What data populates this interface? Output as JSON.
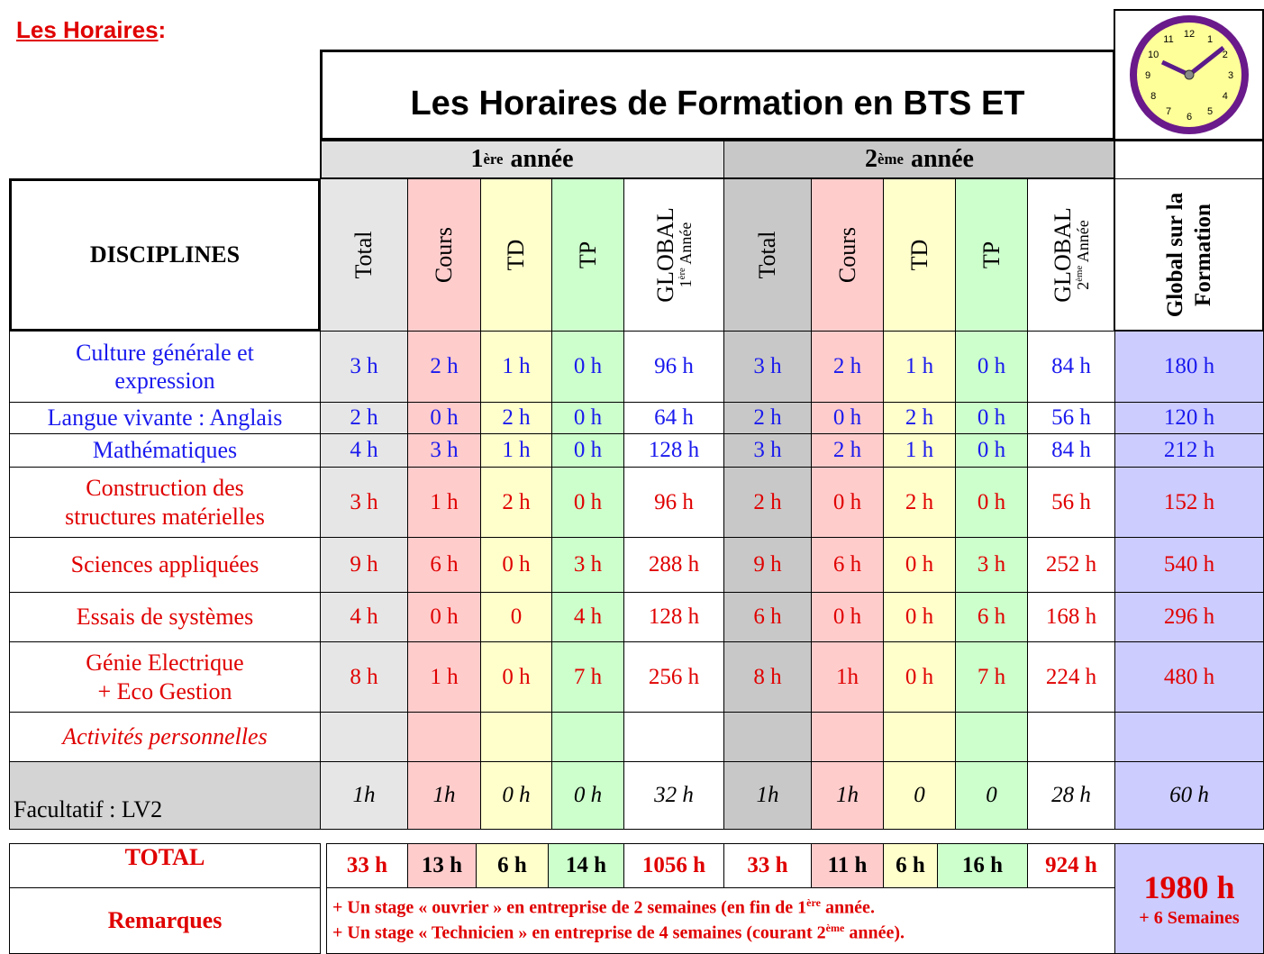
{
  "header": {
    "title": "Les Horaires",
    "title_suffix": ":"
  },
  "table": {
    "title": "Les Horaires de Formation en BTS ET",
    "years": [
      {
        "ordinal": "1",
        "sup": "ère",
        "label": "année"
      },
      {
        "ordinal": "2",
        "sup": "ème",
        "label": "année"
      }
    ],
    "discipline_header": "DISCIPLINES",
    "columns": [
      {
        "label": "Total"
      },
      {
        "label": "Cours"
      },
      {
        "label": "TD"
      },
      {
        "label": "TP"
      },
      {
        "label": "GLOBAL",
        "sub": {
          "before": "1",
          "sup": "ère",
          "after": " Année"
        }
      },
      {
        "label": "Total"
      },
      {
        "label": "Cours"
      },
      {
        "label": "TD"
      },
      {
        "label": "TP"
      },
      {
        "label": "GLOBAL",
        "sub": {
          "before": "2",
          "sup": "ème",
          "after": " Année"
        }
      },
      {
        "label": "Global sur la Formation"
      }
    ],
    "rows": [
      {
        "name": [
          "Culture générale et",
          "expression"
        ],
        "color": "#1a1aee",
        "values": [
          "3 h",
          "2 h",
          "1 h",
          "0 h",
          "96 h",
          "3 h",
          "2 h",
          "1 h",
          "0 h",
          "84 h",
          "180 h"
        ]
      },
      {
        "name": [
          "Langue vivante : Anglais"
        ],
        "color": "#1a1aee",
        "values": [
          "2 h",
          "0 h",
          "2 h",
          "0 h",
          "64 h",
          "2 h",
          "0 h",
          "2 h",
          "0 h",
          "56 h",
          "120 h"
        ]
      },
      {
        "name": [
          "Mathématiques"
        ],
        "color": "#1a1aee",
        "values": [
          "4 h",
          "3 h",
          "1 h",
          "0 h",
          "128 h",
          "3 h",
          "2 h",
          "1 h",
          "0 h",
          "84 h",
          "212 h"
        ]
      },
      {
        "name": [
          "Construction des",
          "structures matérielles"
        ],
        "color": "#e00000",
        "values": [
          "3 h",
          "1 h",
          "2 h",
          "0 h",
          "96 h",
          "2 h",
          "0 h",
          "2 h",
          "0 h",
          "56 h",
          "152 h"
        ]
      },
      {
        "name": [
          "Sciences appliquées"
        ],
        "color": "#e00000",
        "values": [
          "9 h",
          "6 h",
          "0 h",
          "3 h",
          "288 h",
          "9 h",
          "6 h",
          "0 h",
          "3 h",
          "252 h",
          "540 h"
        ]
      },
      {
        "name": [
          "Essais de systèmes"
        ],
        "color": "#e00000",
        "values": [
          "4 h",
          "0 h",
          "0",
          "4 h",
          "128 h",
          "6 h",
          "0 h",
          "0 h",
          "6 h",
          "168 h",
          "296 h"
        ]
      },
      {
        "name": [
          "Génie Electrique",
          "+ Eco Gestion"
        ],
        "color": "#e00000",
        "values": [
          "8 h",
          "1 h",
          "0 h",
          "7 h",
          "256 h",
          "8 h",
          "1h",
          "0 h",
          "7 h",
          "224 h",
          "480 h"
        ]
      },
      {
        "name": [
          "Activités personnelles"
        ],
        "color": "#e00000",
        "italic": true
      },
      {
        "name": [
          "Facultatif : LV2"
        ],
        "color": "#000000",
        "label_bg": "#d4d4d4",
        "values_italic": true,
        "values": [
          "1h",
          "1h",
          "0 h",
          "0 h",
          "32 h",
          "1h",
          "1h",
          "0",
          "0",
          "28 h",
          "60 h"
        ]
      }
    ],
    "total": {
      "label": "TOTAL",
      "values": [
        "33 h",
        "13 h",
        "6 h",
        "14 h",
        "1056 h",
        "33 h",
        "11 h",
        "6 h",
        "16 h",
        "924 h"
      ],
      "grand": "1980 h",
      "grand_note": "+ 6 Semaines"
    },
    "remarks": {
      "label": "Remarques",
      "lines": [
        {
          "before": "+ Un stage « ouvrier » en entreprise de 2 semaines (en fin de 1",
          "sup": "ère",
          "after": " année."
        },
        {
          "before": "+ Un stage « Technicien » en entreprise de 4 semaines (courant 2",
          "sup": "ème",
          "after": " année)."
        }
      ]
    }
  },
  "clock": {
    "numbers": [
      12,
      1,
      2,
      3,
      4,
      5,
      6,
      7,
      8,
      9,
      10,
      11
    ]
  }
}
